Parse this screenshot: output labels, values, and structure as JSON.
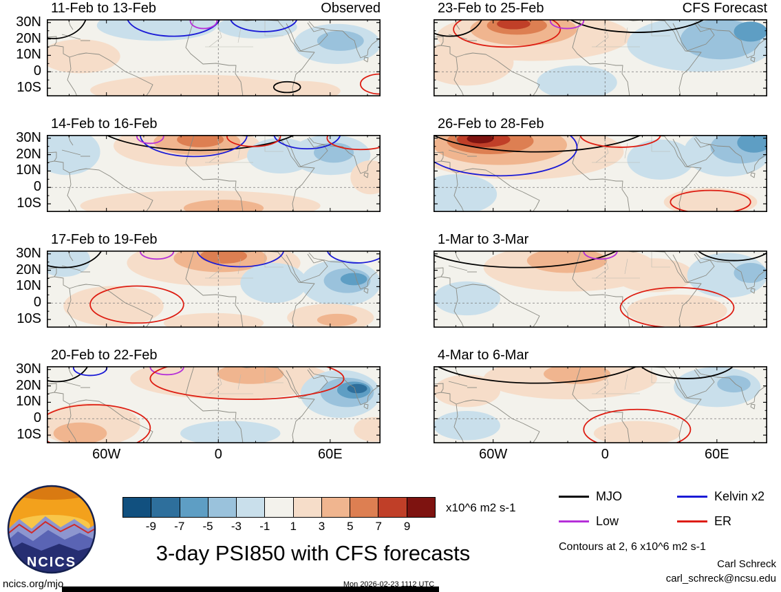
{
  "figure": {
    "title": "3-day PSI850 with CFS forecasts",
    "site": "ncics.org/mjo",
    "timestamp": "Mon 2026-02-23 1112 UTC",
    "credit": {
      "name": "Carl Schreck",
      "email": "carl_schreck@ncsu.edu"
    },
    "contours_note": "Contours at 2, 6 x10^6 m2 s-1",
    "units_label": "x10^6 m2 s-1",
    "logo_text": "NCICS"
  },
  "colorbar": {
    "levels": [
      -9,
      -7,
      -5,
      -3,
      -1,
      1,
      3,
      5,
      7,
      9
    ],
    "colors": [
      "#11507f",
      "#2e6f9c",
      "#5e9ec4",
      "#9ac2dc",
      "#c9dfeb",
      "#f3f2ec",
      "#f6ddc9",
      "#f0b58f",
      "#dd7f52",
      "#c03f28",
      "#7e1310"
    ]
  },
  "legend": {
    "items": [
      {
        "wave": "MJO",
        "label": "MJO",
        "color": "#000000"
      },
      {
        "wave": "Kelvin",
        "label": "Kelvin x2",
        "color": "#1a1ad6"
      },
      {
        "wave": "Low",
        "label": "Low",
        "color": "#b52fd8"
      },
      {
        "wave": "ER",
        "label": "ER",
        "color": "#dd1c11"
      }
    ]
  },
  "axes": {
    "lat_range": [
      -15,
      32
    ],
    "lon_range": [
      -92,
      87
    ],
    "lat_ticks": [
      {
        "lat": 30,
        "label": "30N"
      },
      {
        "lat": 20,
        "label": "20N"
      },
      {
        "lat": 10,
        "label": "10N"
      },
      {
        "lat": 0,
        "label": "0"
      },
      {
        "lat": -10,
        "label": "10S"
      }
    ],
    "lon_ticks": [
      {
        "lon": -60,
        "label": "60W"
      },
      {
        "lon": 0,
        "label": "0"
      },
      {
        "lon": 60,
        "label": "60E"
      }
    ]
  },
  "chart_data": {
    "type": "heatmap",
    "variable": "PSI850",
    "shading_units": "x10^6 m2 s-1",
    "columns": [
      "Observed",
      "CFS Forecast"
    ],
    "element_format": {
      "shading": "[value_bin, cx, cy, rx, ry] — ellipse of anomaly shading, cx/cy/rx/ry as fractions of panel, value in x10^6 m2 s-1",
      "contours": "[wave_name, cx, cy, rx, ry] — wave contour ellipse, fractions of panel"
    },
    "panels": [
      {
        "title": "11-Feb to 13-Feb",
        "col": 0,
        "row": 0,
        "shading": [
          [
            -2,
            0.33,
            0.08,
            0.18,
            0.2
          ],
          [
            -2,
            0.63,
            0.1,
            0.12,
            0.15
          ],
          [
            -2,
            0.87,
            0.32,
            0.13,
            0.26
          ],
          [
            -4,
            0.88,
            0.28,
            0.07,
            0.13
          ],
          [
            2,
            0.1,
            0.48,
            0.12,
            0.22
          ],
          [
            2,
            0.45,
            0.92,
            0.32,
            0.2
          ],
          [
            2,
            0.76,
            0.93,
            0.12,
            0.13
          ]
        ],
        "contours": [
          [
            "MJO",
            0.02,
            -0.08,
            0.1,
            0.33
          ],
          [
            "Kelvin",
            0.38,
            -0.04,
            0.14,
            0.26
          ],
          [
            "Kelvin",
            0.65,
            -0.02,
            0.1,
            0.18
          ],
          [
            "Low",
            0.47,
            0.02,
            0.04,
            0.1
          ],
          [
            "MJO",
            0.72,
            0.88,
            0.04,
            0.07
          ],
          [
            "ER",
            1.0,
            0.84,
            0.06,
            0.13
          ]
        ]
      },
      {
        "title": "14-Feb to 16-Feb",
        "col": 0,
        "row": 1,
        "shading": [
          [
            -2,
            0.06,
            0.22,
            0.1,
            0.3
          ],
          [
            2,
            0.42,
            0.14,
            0.22,
            0.27
          ],
          [
            4,
            0.45,
            0.09,
            0.13,
            0.17
          ],
          [
            6,
            0.46,
            0.06,
            0.07,
            0.1
          ],
          [
            -2,
            0.7,
            0.27,
            0.1,
            0.23
          ],
          [
            -2,
            0.85,
            0.26,
            0.12,
            0.26
          ],
          [
            -4,
            0.86,
            0.23,
            0.06,
            0.13
          ],
          [
            2,
            0.46,
            0.92,
            0.36,
            0.2
          ],
          [
            4,
            0.53,
            0.95,
            0.12,
            0.11
          ],
          [
            2,
            0.97,
            0.55,
            0.06,
            0.22
          ]
        ],
        "contours": [
          [
            "MJO",
            0.46,
            -0.18,
            0.32,
            0.38
          ],
          [
            "Kelvin",
            0.44,
            0.0,
            0.16,
            0.28
          ],
          [
            "Kelvin",
            0.78,
            -0.02,
            0.1,
            0.2
          ],
          [
            "Low",
            0.31,
            0.02,
            0.04,
            0.09
          ],
          [
            "ER",
            0.62,
            0.02,
            0.08,
            0.13
          ],
          [
            "ER",
            0.94,
            0.04,
            0.1,
            0.15
          ]
        ]
      },
      {
        "title": "17-Feb to 19-Feb",
        "col": 0,
        "row": 2,
        "shading": [
          [
            2,
            0.5,
            0.16,
            0.26,
            0.3
          ],
          [
            4,
            0.52,
            0.1,
            0.14,
            0.18
          ],
          [
            6,
            0.53,
            0.07,
            0.07,
            0.1
          ],
          [
            -2,
            0.05,
            0.12,
            0.08,
            0.22
          ],
          [
            -2,
            0.68,
            0.42,
            0.1,
            0.26
          ],
          [
            -2,
            0.88,
            0.42,
            0.12,
            0.3
          ],
          [
            -4,
            0.9,
            0.39,
            0.07,
            0.16
          ],
          [
            -6,
            0.92,
            0.37,
            0.04,
            0.08
          ],
          [
            2,
            0.2,
            0.72,
            0.15,
            0.26
          ],
          [
            2,
            0.5,
            0.94,
            0.15,
            0.13
          ],
          [
            2,
            0.85,
            0.87,
            0.13,
            0.18
          ],
          [
            4,
            0.87,
            0.9,
            0.06,
            0.08
          ]
        ],
        "contours": [
          [
            "MJO",
            0.05,
            -0.1,
            0.12,
            0.32
          ],
          [
            "Low",
            0.33,
            0.01,
            0.05,
            0.1
          ],
          [
            "Kelvin",
            0.58,
            -0.01,
            0.13,
            0.22
          ],
          [
            "Kelvin",
            0.93,
            -0.02,
            0.09,
            0.18
          ],
          [
            "ER",
            0.27,
            0.7,
            0.14,
            0.24
          ]
        ]
      },
      {
        "title": "20-Feb to 22-Feb",
        "col": 0,
        "row": 3,
        "shading": [
          [
            2,
            0.13,
            0.76,
            0.15,
            0.28
          ],
          [
            4,
            0.1,
            0.87,
            0.08,
            0.14
          ],
          [
            2,
            0.55,
            0.16,
            0.3,
            0.27
          ],
          [
            4,
            0.61,
            0.1,
            0.1,
            0.13
          ],
          [
            -2,
            0.88,
            0.36,
            0.12,
            0.31
          ],
          [
            -4,
            0.9,
            0.34,
            0.08,
            0.19
          ],
          [
            -6,
            0.92,
            0.31,
            0.05,
            0.11
          ],
          [
            -8,
            0.93,
            0.29,
            0.03,
            0.06
          ],
          [
            -2,
            0.55,
            0.87,
            0.15,
            0.16
          ],
          [
            2,
            0.98,
            0.82,
            0.06,
            0.16
          ]
        ],
        "contours": [
          [
            "MJO",
            0.03,
            -0.12,
            0.1,
            0.32
          ],
          [
            "Kelvin",
            0.13,
            0.02,
            0.05,
            0.1
          ],
          [
            "Low",
            0.36,
            0.01,
            0.05,
            0.1
          ],
          [
            "ER",
            0.14,
            0.8,
            0.17,
            0.3
          ],
          [
            "ER",
            0.6,
            0.16,
            0.29,
            0.27
          ]
        ]
      },
      {
        "title": "23-Feb to 25-Feb",
        "col": 1,
        "row": 0,
        "shading": [
          [
            2,
            0.3,
            0.22,
            0.29,
            0.32
          ],
          [
            4,
            0.27,
            0.13,
            0.16,
            0.21
          ],
          [
            6,
            0.25,
            0.08,
            0.09,
            0.12
          ],
          [
            8,
            0.24,
            0.06,
            0.05,
            0.07
          ],
          [
            2,
            0.1,
            0.56,
            0.14,
            0.3
          ],
          [
            -2,
            0.8,
            0.32,
            0.22,
            0.36
          ],
          [
            -4,
            0.86,
            0.26,
            0.12,
            0.26
          ],
          [
            -6,
            0.95,
            0.16,
            0.05,
            0.13
          ],
          [
            -2,
            0.43,
            0.82,
            0.12,
            0.22
          ]
        ],
        "contours": [
          [
            "ER",
            0.22,
            0.13,
            0.16,
            0.23
          ],
          [
            "MJO",
            0.05,
            -0.1,
            0.1,
            0.32
          ],
          [
            "MJO",
            0.61,
            -0.16,
            0.23,
            0.33
          ],
          [
            "Low",
            0.4,
            0.02,
            0.05,
            0.1
          ]
        ]
      },
      {
        "title": "26-Feb to 28-Feb",
        "col": 1,
        "row": 1,
        "shading": [
          [
            2,
            0.26,
            0.22,
            0.31,
            0.36
          ],
          [
            4,
            0.2,
            0.13,
            0.2,
            0.26
          ],
          [
            6,
            0.17,
            0.08,
            0.13,
            0.17
          ],
          [
            8,
            0.15,
            0.06,
            0.08,
            0.1
          ],
          [
            10,
            0.14,
            0.05,
            0.04,
            0.06
          ],
          [
            -2,
            0.07,
            0.77,
            0.12,
            0.26
          ],
          [
            -2,
            0.68,
            0.32,
            0.1,
            0.26
          ],
          [
            -2,
            0.88,
            0.22,
            0.13,
            0.32
          ],
          [
            -4,
            0.92,
            0.16,
            0.09,
            0.21
          ],
          [
            -6,
            0.96,
            0.1,
            0.05,
            0.13
          ],
          [
            2,
            0.83,
            0.87,
            0.14,
            0.18
          ]
        ],
        "contours": [
          [
            "Kelvin",
            0.2,
            0.16,
            0.23,
            0.37
          ],
          [
            "MJO",
            0.31,
            -0.22,
            0.36,
            0.44
          ],
          [
            "ER",
            0.56,
            0.0,
            0.12,
            0.16
          ],
          [
            "ER",
            0.83,
            0.87,
            0.12,
            0.15
          ]
        ]
      },
      {
        "title": "1-Mar to 3-Mar",
        "col": 1,
        "row": 2,
        "shading": [
          [
            2,
            0.41,
            0.22,
            0.26,
            0.31
          ],
          [
            4,
            0.4,
            0.13,
            0.12,
            0.16
          ],
          [
            2,
            0.66,
            0.32,
            0.12,
            0.22
          ],
          [
            -2,
            0.88,
            0.32,
            0.12,
            0.29
          ],
          [
            -4,
            0.95,
            0.29,
            0.05,
            0.13
          ],
          [
            -2,
            0.1,
            0.62,
            0.1,
            0.22
          ],
          [
            2,
            0.73,
            0.78,
            0.15,
            0.21
          ]
        ],
        "contours": [
          [
            "MJO",
            0.26,
            -0.2,
            0.33,
            0.42
          ],
          [
            "MJO",
            0.9,
            -0.1,
            0.12,
            0.23
          ],
          [
            "Low",
            0.5,
            0.01,
            0.05,
            0.1
          ],
          [
            "ER",
            0.73,
            0.74,
            0.17,
            0.26
          ]
        ]
      },
      {
        "title": "4-Mar to 6-Mar",
        "col": 1,
        "row": 3,
        "shading": [
          [
            2,
            0.41,
            0.16,
            0.26,
            0.27
          ],
          [
            4,
            0.43,
            0.1,
            0.1,
            0.13
          ],
          [
            2,
            0.1,
            0.32,
            0.1,
            0.21
          ],
          [
            -2,
            0.85,
            0.27,
            0.13,
            0.26
          ],
          [
            -4,
            0.9,
            0.23,
            0.05,
            0.11
          ],
          [
            -2,
            0.1,
            0.77,
            0.1,
            0.19
          ],
          [
            2,
            0.61,
            0.87,
            0.13,
            0.16
          ]
        ],
        "contours": [
          [
            "MJO",
            0.31,
            -0.2,
            0.34,
            0.42
          ],
          [
            "MJO",
            0.76,
            -0.1,
            0.15,
            0.26
          ],
          [
            "ER",
            0.61,
            0.82,
            0.16,
            0.26
          ]
        ]
      }
    ]
  }
}
